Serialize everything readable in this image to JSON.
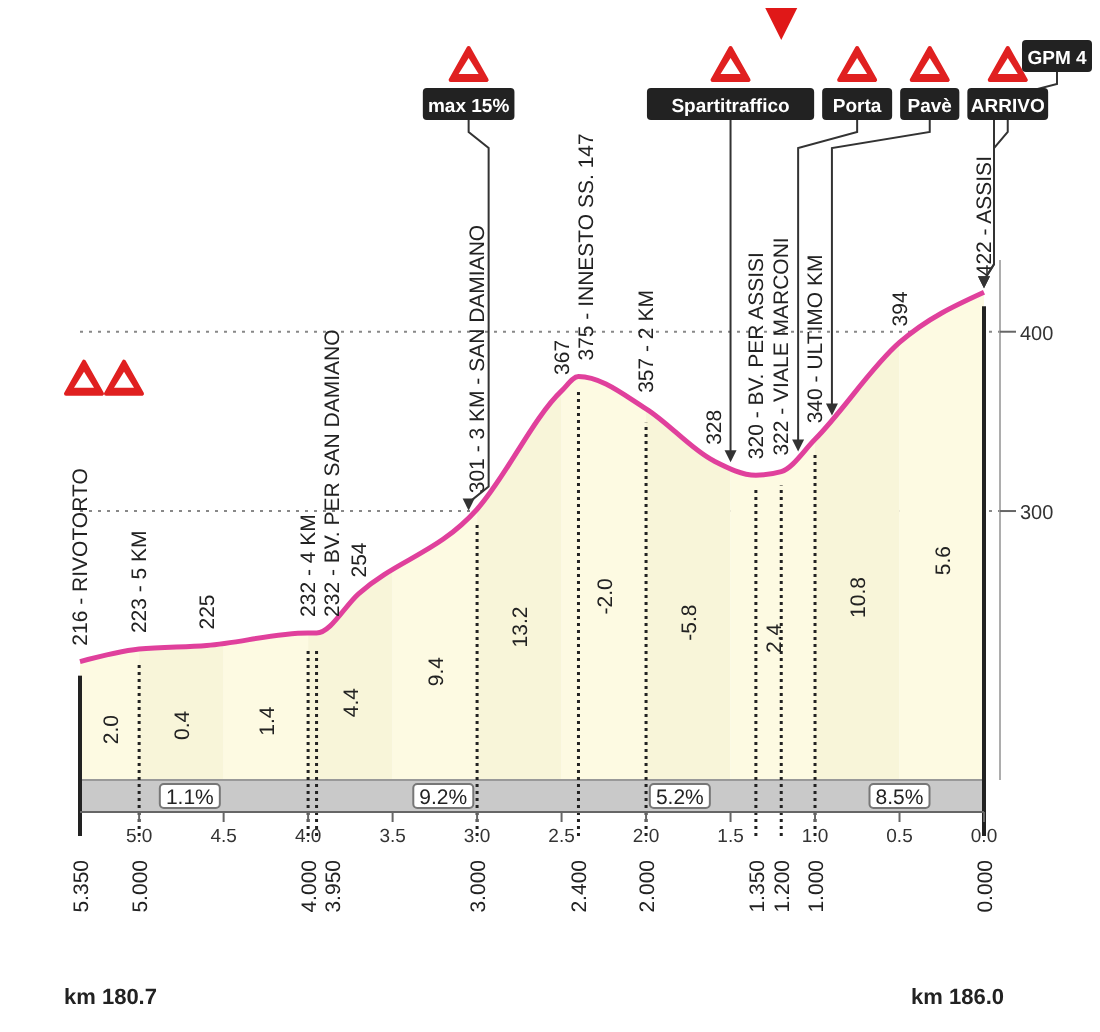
{
  "chart_data": {
    "type": "area",
    "x": [
      5.35,
      5.0,
      4.6,
      4.0,
      3.95,
      3.7,
      3.0,
      2.5,
      2.4,
      2.0,
      1.6,
      1.35,
      1.2,
      1.0,
      0.5,
      0
    ],
    "series": [
      {
        "color": "#e0409c",
        "values": [
          216,
          223,
          225,
          232,
          232,
          254,
          301,
          367,
          375,
          357,
          328,
          320,
          322,
          340,
          394,
          422
        ],
        "value_labels": [
          "216 - RIVOTORTO",
          "223 - 5 KM",
          "225",
          "232 - 4 KM",
          "232 - BV. PER SAN DAMIANO",
          "254",
          "301 - 3 KM - SAN DAMIANO",
          "367",
          "375 - INNESTO SS. 147",
          "357 - 2 KM",
          "328",
          "320 - BV. PER ASSISI",
          "322 - VIALE MARCONI",
          "340 - ULTIMO KM",
          "394",
          "422 - ASSISI"
        ]
      }
    ],
    "xlim": [
      5.35,
      0
    ],
    "xticks": [
      {
        "value": 5,
        "label": "5.0"
      },
      4.5,
      {
        "value": 4,
        "label": "4.0"
      },
      3.5,
      {
        "value": 3,
        "label": "3.0"
      },
      2.5,
      {
        "value": 2,
        "label": "2.0"
      },
      1.5,
      {
        "value": 1,
        "label": "1.0"
      },
      0.5,
      {
        "value": 0,
        "label": "0.0"
      }
    ],
    "ylim": [
      150,
      440
    ],
    "yticks": [
      300,
      400
    ],
    "grid": "y",
    "bands": [
      {
        "axis": "x",
        "from": 5.35,
        "to": 5.0,
        "label": "2.0",
        "color": "#fbf6d8"
      },
      {
        "axis": "x",
        "from": 5.0,
        "to": 4.5,
        "label": "0.4",
        "color": "#f3edc6"
      },
      {
        "axis": "x",
        "from": 4.5,
        "to": 4.0,
        "label": "1.4",
        "color": "#fbf6d8"
      },
      {
        "axis": "x",
        "from": 4.0,
        "to": 3.5,
        "label": "4.4",
        "color": "#f3edc6"
      },
      {
        "axis": "x",
        "from": 3.5,
        "to": 3.0,
        "label": "9.4",
        "color": "#fbf6d8"
      },
      {
        "axis": "x",
        "from": 3.0,
        "to": 2.5,
        "label": "13.2",
        "color": "#f3edc6"
      },
      {
        "axis": "x",
        "from": 2.5,
        "to": 2.0,
        "label": "-2.0",
        "color": "#fbf6d8"
      },
      {
        "axis": "x",
        "from": 2.0,
        "to": 1.5,
        "label": "-5.8",
        "color": "#f3edc6"
      },
      {
        "axis": "x",
        "from": 1.5,
        "to": 1.0,
        "label": "2.4",
        "color": "#fbf6d8"
      },
      {
        "axis": "x",
        "from": 1.0,
        "to": 0.5,
        "label": "10.8",
        "color": "#f3edc6"
      },
      {
        "axis": "x",
        "from": 0.5,
        "to": 0,
        "label": "5.6",
        "color": "#fbf6d8"
      }
    ],
    "ref_lines": [
      {
        "axis": "x",
        "value": 5.35,
        "label": "5.350",
        "line_style": "solid"
      },
      {
        "axis": "x",
        "value": 5.0,
        "label": "5.000",
        "line_style": "dotted"
      },
      {
        "axis": "x",
        "value": 4.0,
        "label": "4.000",
        "line_style": "dotted"
      },
      {
        "axis": "x",
        "value": 3.95,
        "label": "3.950",
        "line_style": "dotted"
      },
      {
        "axis": "x",
        "value": 3.0,
        "label": "3.000",
        "line_style": "dotted"
      },
      {
        "axis": "x",
        "value": 2.4,
        "label": "2.400",
        "line_style": "dotted"
      },
      {
        "axis": "x",
        "value": 2.0,
        "label": "2.000",
        "line_style": "dotted"
      },
      {
        "axis": "x",
        "value": 1.35,
        "label": "1.350",
        "line_style": "dotted"
      },
      {
        "axis": "x",
        "value": 1.2,
        "label": "1.200",
        "line_style": "dotted"
      },
      {
        "axis": "x",
        "value": 1.0,
        "label": "1.000",
        "line_style": "dotted"
      },
      {
        "axis": "x",
        "value": 0,
        "label": "0.000",
        "line_style": "solid"
      }
    ],
    "annotations": [
      {
        "text": "max 15%",
        "x": 3.05,
        "y": 298
      },
      {
        "text": "Spartitraffico",
        "x": 1.5,
        "y": 325
      },
      {
        "text": "Porta",
        "x": 1.1,
        "y": 331
      },
      {
        "text": "Pavè",
        "x": 0.9,
        "y": 351
      },
      {
        "text": "ARRIVO",
        "x": 0,
        "y": 422
      },
      {
        "text": "GPM 4",
        "x": 0,
        "y": 422
      },
      {
        "text": "1.1%",
        "x": 4.7
      },
      {
        "text": "9.2%",
        "x": 3.2
      },
      {
        "text": "5.2%",
        "x": 1.8
      },
      {
        "text": "8.5%",
        "x": 0.5
      },
      "km 180.7",
      "km 186.0"
    ]
  }
}
